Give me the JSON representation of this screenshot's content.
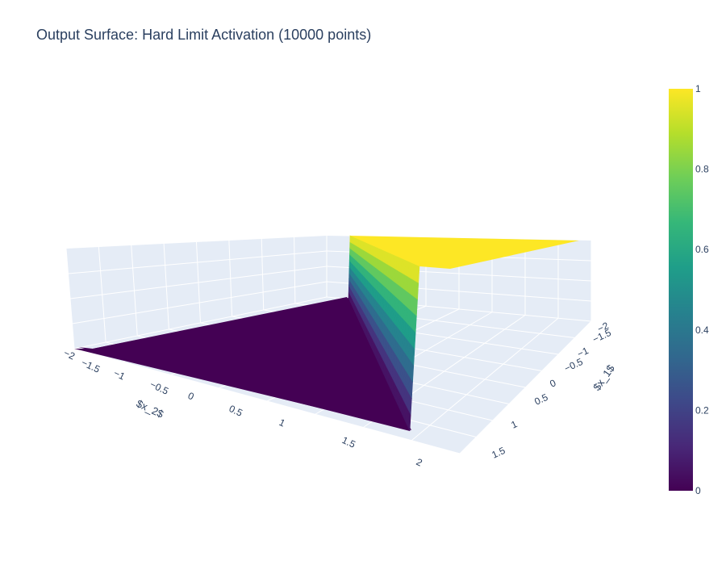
{
  "chart_data": {
    "type": "surface",
    "title": "Output Surface: Hard Limit Activation (10000 points)",
    "function": "z = 1 where x_1 < x_2 region boundary (hard limit step), else 0",
    "x1_axis": {
      "label": "$x_1$",
      "ticks": [
        "−2",
        "−1.5",
        "−1",
        "−0.5",
        "0",
        "0.5",
        "1",
        "1.5",
        "2"
      ],
      "range": [
        -2,
        2
      ]
    },
    "x2_axis": {
      "label": "$x_2$",
      "ticks": [
        "−2",
        "−1.5",
        "−1",
        "−0.5",
        "0",
        "0.5",
        "1",
        "1.5",
        "2"
      ],
      "range": [
        -2,
        2
      ]
    },
    "z_axis": {
      "range": [
        0,
        1
      ]
    },
    "colorscale": {
      "name": "Viridis",
      "ticks": [
        "0",
        "0.2",
        "0.4",
        "0.6",
        "0.8",
        "1"
      ],
      "stops": [
        "#440154",
        "#482878",
        "#3e4989",
        "#31688e",
        "#26828e",
        "#1f9e89",
        "#35b779",
        "#6ece58",
        "#b5de2b",
        "#fde725"
      ]
    },
    "values": {
      "low_region_z": 0,
      "high_region_z": 1
    }
  }
}
